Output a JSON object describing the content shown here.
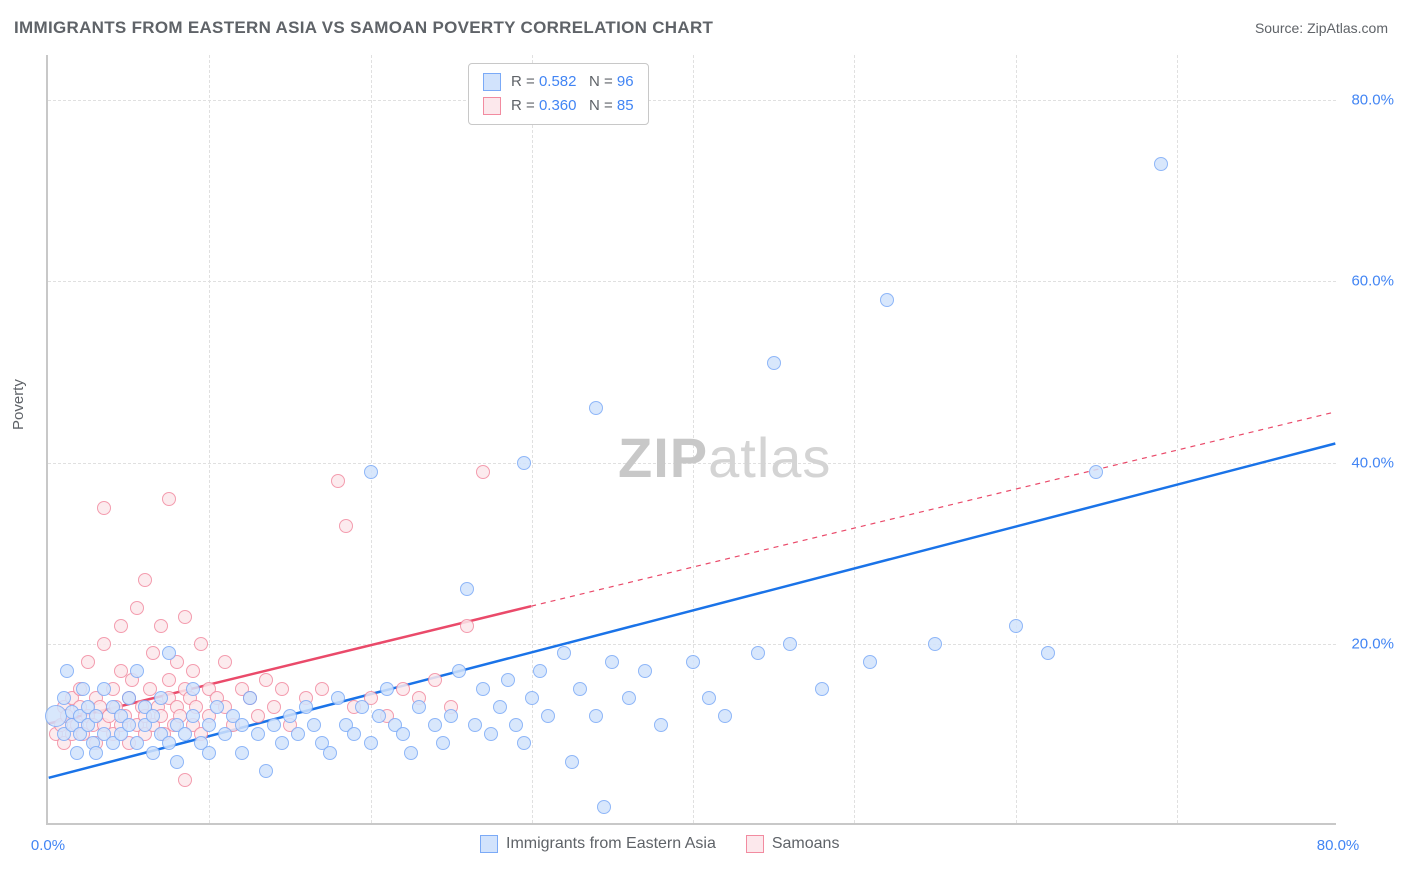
{
  "title": "IMMIGRANTS FROM EASTERN ASIA VS SAMOAN POVERTY CORRELATION CHART",
  "source": "Source: ZipAtlas.com",
  "ylabel": "Poverty",
  "watermark": {
    "zip": "ZIP",
    "atlas": "atlas"
  },
  "chart": {
    "type": "scatter",
    "background_color": "#ffffff",
    "grid_color": "#e0e0e0",
    "axis_color": "#c8c8c8",
    "xlim": [
      0,
      80
    ],
    "ylim": [
      0,
      85
    ],
    "xticks": [
      {
        "v": 0,
        "l": "0.0%"
      },
      {
        "v": 80,
        "l": "80.0%"
      }
    ],
    "yticks": [
      {
        "v": 20,
        "l": "20.0%"
      },
      {
        "v": 40,
        "l": "40.0%"
      },
      {
        "v": 60,
        "l": "60.0%"
      },
      {
        "v": 80,
        "l": "80.0%"
      }
    ],
    "grid_v": [
      10,
      20,
      30,
      40,
      50,
      60,
      70
    ],
    "grid_h": [
      20,
      40,
      60,
      80
    ],
    "series": [
      {
        "name": "Immigrants from Eastern Asia",
        "fill": "#d2e3fc",
        "stroke": "#7baaf7",
        "line_color": "#1a73e8",
        "line_width": 2.5,
        "marker_r": 7,
        "R": "0.582",
        "N": "96",
        "trend": {
          "x1": 0,
          "y1": 5,
          "x2": 80,
          "y2": 42,
          "dash_from_x": 80
        },
        "points": [
          [
            0.5,
            12,
            11
          ],
          [
            1,
            14
          ],
          [
            1,
            10
          ],
          [
            1.2,
            17
          ],
          [
            1.5,
            11
          ],
          [
            1.5,
            12.5
          ],
          [
            1.8,
            8
          ],
          [
            2,
            10
          ],
          [
            2,
            12
          ],
          [
            2.2,
            15
          ],
          [
            2.5,
            11
          ],
          [
            2.5,
            13
          ],
          [
            2.8,
            9
          ],
          [
            3,
            12
          ],
          [
            3,
            8
          ],
          [
            3.5,
            10
          ],
          [
            3.5,
            15
          ],
          [
            4,
            9
          ],
          [
            4,
            13
          ],
          [
            4.5,
            10
          ],
          [
            4.5,
            12
          ],
          [
            5,
            11
          ],
          [
            5,
            14
          ],
          [
            5.5,
            9
          ],
          [
            5.5,
            17
          ],
          [
            6,
            11
          ],
          [
            6,
            13
          ],
          [
            6.5,
            8
          ],
          [
            6.5,
            12
          ],
          [
            7,
            10
          ],
          [
            7,
            14
          ],
          [
            7.5,
            9
          ],
          [
            7.5,
            19
          ],
          [
            8,
            11
          ],
          [
            8,
            7
          ],
          [
            8.5,
            10
          ],
          [
            9,
            12
          ],
          [
            9,
            15
          ],
          [
            9.5,
            9
          ],
          [
            10,
            11
          ],
          [
            10,
            8
          ],
          [
            10.5,
            13
          ],
          [
            11,
            10
          ],
          [
            11.5,
            12
          ],
          [
            12,
            8
          ],
          [
            12,
            11
          ],
          [
            12.5,
            14
          ],
          [
            13,
            10
          ],
          [
            13.5,
            6
          ],
          [
            14,
            11
          ],
          [
            14.5,
            9
          ],
          [
            15,
            12
          ],
          [
            15.5,
            10
          ],
          [
            16,
            13
          ],
          [
            16.5,
            11
          ],
          [
            17,
            9
          ],
          [
            17.5,
            8
          ],
          [
            18,
            14
          ],
          [
            18.5,
            11
          ],
          [
            19,
            10
          ],
          [
            19.5,
            13
          ],
          [
            20,
            9
          ],
          [
            20.5,
            12
          ],
          [
            21,
            15
          ],
          [
            21.5,
            11
          ],
          [
            22,
            10
          ],
          [
            22.5,
            8
          ],
          [
            23,
            13
          ],
          [
            24,
            11
          ],
          [
            24.5,
            9
          ],
          [
            25,
            12
          ],
          [
            25.5,
            17
          ],
          [
            26,
            26
          ],
          [
            26.5,
            11
          ],
          [
            27,
            15
          ],
          [
            27.5,
            10
          ],
          [
            28,
            13
          ],
          [
            28.5,
            16
          ],
          [
            29,
            11
          ],
          [
            29.5,
            9
          ],
          [
            29.5,
            40
          ],
          [
            30,
            14
          ],
          [
            30.5,
            17
          ],
          [
            31,
            12
          ],
          [
            32,
            19
          ],
          [
            32.5,
            7
          ],
          [
            33,
            15
          ],
          [
            34,
            46
          ],
          [
            34,
            12
          ],
          [
            34.5,
            2
          ],
          [
            35,
            18
          ],
          [
            36,
            14
          ],
          [
            37,
            17
          ],
          [
            38,
            11
          ],
          [
            40,
            18
          ],
          [
            41,
            14
          ],
          [
            42,
            12
          ],
          [
            44,
            19
          ],
          [
            45,
            51
          ],
          [
            46,
            20
          ],
          [
            48,
            15
          ],
          [
            51,
            18
          ],
          [
            52,
            58
          ],
          [
            55,
            20
          ],
          [
            60,
            22
          ],
          [
            62,
            19
          ],
          [
            65,
            39
          ],
          [
            69,
            73
          ],
          [
            20,
            39
          ]
        ]
      },
      {
        "name": "Samoans",
        "fill": "#fce8ec",
        "stroke": "#f28ba0",
        "line_color": "#ea4a6a",
        "line_width": 2.5,
        "marker_r": 7,
        "R": "0.360",
        "N": "85",
        "trend": {
          "x1": 0,
          "y1": 11,
          "x2": 30,
          "y2": 24,
          "dash_to_x": 80,
          "dash_to_y": 45.5
        },
        "points": [
          [
            0.5,
            10
          ],
          [
            0.8,
            11
          ],
          [
            1,
            13
          ],
          [
            1,
            9
          ],
          [
            1.2,
            12
          ],
          [
            1.5,
            14
          ],
          [
            1.5,
            10
          ],
          [
            1.8,
            11
          ],
          [
            2,
            13
          ],
          [
            2,
            15
          ],
          [
            2.2,
            10
          ],
          [
            2.5,
            12
          ],
          [
            2.5,
            18
          ],
          [
            2.8,
            11
          ],
          [
            3,
            14
          ],
          [
            3,
            9
          ],
          [
            3.2,
            13
          ],
          [
            3.5,
            11
          ],
          [
            3.5,
            20
          ],
          [
            3.5,
            35
          ],
          [
            3.8,
            12
          ],
          [
            4,
            15
          ],
          [
            4,
            10
          ],
          [
            4.2,
            13
          ],
          [
            4.5,
            11
          ],
          [
            4.5,
            17
          ],
          [
            4.5,
            22
          ],
          [
            4.8,
            12
          ],
          [
            5,
            14
          ],
          [
            5,
            9
          ],
          [
            5.2,
            16
          ],
          [
            5.5,
            11
          ],
          [
            5.5,
            24
          ],
          [
            5.8,
            13
          ],
          [
            6,
            12
          ],
          [
            6,
            10
          ],
          [
            6,
            27
          ],
          [
            6.3,
            15
          ],
          [
            6.5,
            11
          ],
          [
            6.5,
            19
          ],
          [
            6.8,
            13
          ],
          [
            7,
            12
          ],
          [
            7,
            22
          ],
          [
            7.2,
            10
          ],
          [
            7.5,
            14
          ],
          [
            7.5,
            16
          ],
          [
            7.5,
            36
          ],
          [
            7.8,
            11
          ],
          [
            8,
            13
          ],
          [
            8,
            18
          ],
          [
            8.2,
            12
          ],
          [
            8.5,
            15
          ],
          [
            8.5,
            23
          ],
          [
            8.5,
            5
          ],
          [
            8.8,
            14
          ],
          [
            9,
            11
          ],
          [
            9,
            17
          ],
          [
            9.2,
            13
          ],
          [
            9.5,
            20
          ],
          [
            9.5,
            10
          ],
          [
            10,
            15
          ],
          [
            10,
            12
          ],
          [
            10.5,
            14
          ],
          [
            11,
            13
          ],
          [
            11,
            18
          ],
          [
            11.5,
            11
          ],
          [
            12,
            15
          ],
          [
            12.5,
            14
          ],
          [
            13,
            12
          ],
          [
            13.5,
            16
          ],
          [
            14,
            13
          ],
          [
            14.5,
            15
          ],
          [
            15,
            11
          ],
          [
            16,
            14
          ],
          [
            17,
            15
          ],
          [
            18,
            38
          ],
          [
            18.5,
            33
          ],
          [
            19,
            13
          ],
          [
            20,
            14
          ],
          [
            21,
            12
          ],
          [
            22,
            15
          ],
          [
            23,
            14
          ],
          [
            24,
            16
          ],
          [
            25,
            13
          ],
          [
            26,
            22
          ],
          [
            27,
            39
          ]
        ]
      }
    ]
  }
}
